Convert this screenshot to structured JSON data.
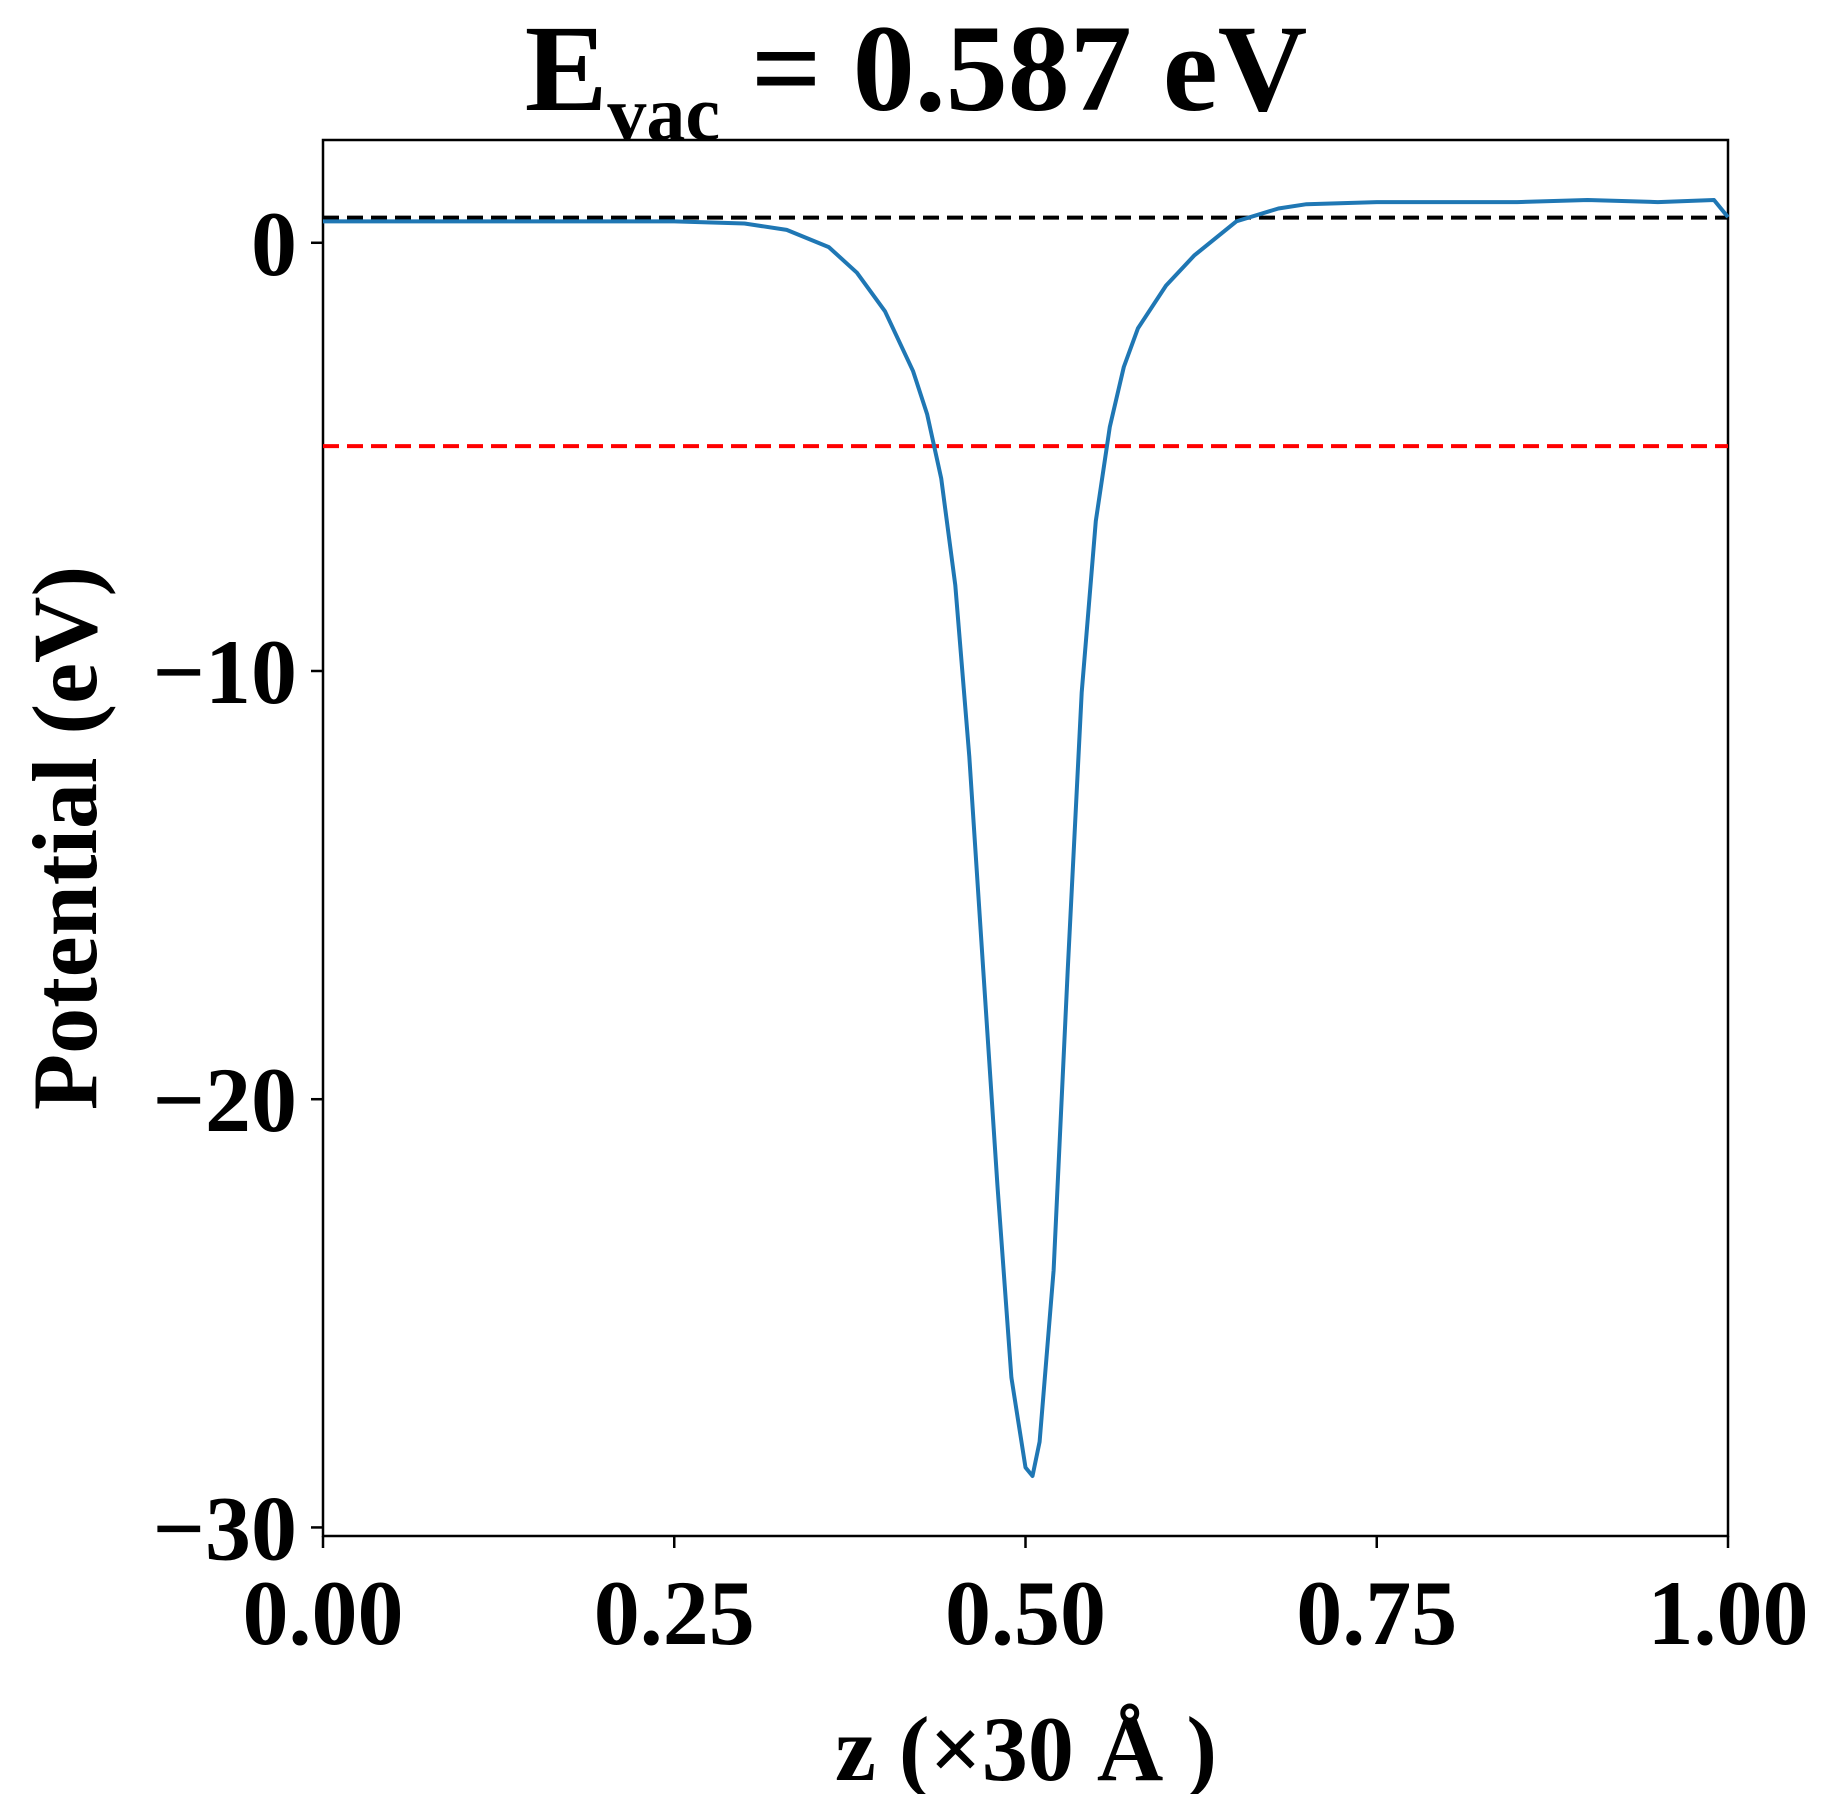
{
  "chart_data": {
    "type": "line",
    "title": {
      "main": "E",
      "subscript": "vac",
      "rest": " = 0.587 eV"
    },
    "xlabel": "z (×30 Å )",
    "ylabel": "Potential (eV)",
    "xlim": [
      0.0,
      1.0
    ],
    "ylim": [
      -30.2,
      2.4
    ],
    "xticks": [
      0.0,
      0.25,
      0.5,
      0.75,
      1.0
    ],
    "xtick_labels": [
      "0.00",
      "0.25",
      "0.50",
      "0.75",
      "1.00"
    ],
    "yticks": [
      0,
      -10,
      -20,
      -30
    ],
    "ytick_labels": [
      "0",
      "−10",
      "−20",
      "−30"
    ],
    "grid": false,
    "colors": {
      "series": "#1f77b4",
      "vacuum_line": "#000000",
      "red_line": "#ff0000"
    },
    "reference_lines": [
      {
        "y": 0.587,
        "style": "dashed",
        "color": "#000000"
      },
      {
        "y": -4.75,
        "style": "dashed",
        "color": "#ff0000"
      }
    ],
    "series": [
      {
        "x": [
          0.0,
          0.05,
          0.1,
          0.15,
          0.2,
          0.25,
          0.3,
          0.33,
          0.36,
          0.38,
          0.4,
          0.42,
          0.43,
          0.44,
          0.45,
          0.46,
          0.47,
          0.48,
          0.49,
          0.5,
          0.505,
          0.51,
          0.52,
          0.53,
          0.54,
          0.55,
          0.56,
          0.57,
          0.58,
          0.6,
          0.62,
          0.65,
          0.68,
          0.7,
          0.75,
          0.8,
          0.85,
          0.9,
          0.95,
          0.99,
          1.0
        ],
        "y": [
          0.5,
          0.5,
          0.5,
          0.5,
          0.5,
          0.5,
          0.45,
          0.3,
          -0.1,
          -0.7,
          -1.6,
          -3.0,
          -4.0,
          -5.5,
          -8.0,
          -12.0,
          -17.0,
          -22.0,
          -26.5,
          -28.6,
          -28.8,
          -28.0,
          -24.0,
          -17.0,
          -10.5,
          -6.5,
          -4.3,
          -2.9,
          -2.0,
          -1.0,
          -0.3,
          0.5,
          0.8,
          0.9,
          0.95,
          0.95,
          0.95,
          1.0,
          0.95,
          1.0,
          0.6
        ]
      }
    ]
  }
}
